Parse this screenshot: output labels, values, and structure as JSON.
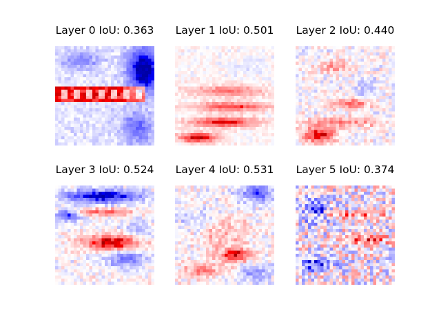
{
  "chart_data": [
    {
      "type": "heatmap",
      "title": "Layer 0 IoU: 0.363",
      "colormap": "seismic",
      "grid": false,
      "pattern": "layer0"
    },
    {
      "type": "heatmap",
      "title": "Layer 1 IoU: 0.501",
      "colormap": "seismic",
      "grid": false,
      "pattern": "layer1"
    },
    {
      "type": "heatmap",
      "title": "Layer 2 IoU: 0.440",
      "colormap": "seismic",
      "grid": false,
      "pattern": "layer2"
    },
    {
      "type": "heatmap",
      "title": "Layer 3 IoU: 0.524",
      "colormap": "seismic",
      "grid": false,
      "pattern": "layer3"
    },
    {
      "type": "heatmap",
      "title": "Layer 4 IoU: 0.531",
      "colormap": "seismic",
      "grid": false,
      "pattern": "layer4"
    },
    {
      "type": "heatmap",
      "title": "Layer 5 IoU: 0.374",
      "colormap": "seismic",
      "grid": false,
      "pattern": "layer5"
    }
  ]
}
